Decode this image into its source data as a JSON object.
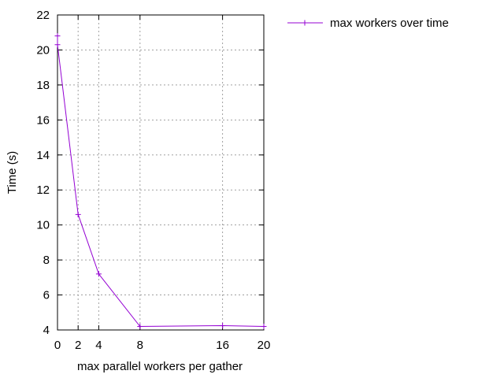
{
  "chart_data": {
    "type": "line",
    "title": "",
    "xlabel": "max parallel workers per gather",
    "ylabel": "Time (s)",
    "xlim": [
      0,
      20
    ],
    "ylim": [
      4,
      22
    ],
    "x_ticks": [
      0,
      2,
      4,
      8,
      16,
      20
    ],
    "y_ticks": [
      4,
      6,
      8,
      10,
      12,
      14,
      16,
      18,
      20,
      22
    ],
    "grid": true,
    "legend_position": "outside-top-right",
    "series": [
      {
        "name": "max workers over time",
        "color": "#9400d3",
        "marker": "plus",
        "x": [
          0,
          0,
          2,
          4,
          8,
          16,
          20
        ],
        "y": [
          20.8,
          20.3,
          10.6,
          7.2,
          4.2,
          4.25,
          4.2
        ]
      }
    ]
  }
}
